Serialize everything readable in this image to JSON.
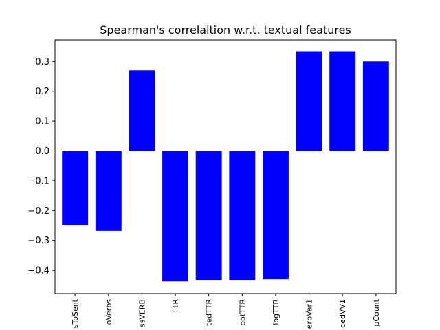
{
  "chart_data": {
    "type": "bar",
    "title": "Spearman's correlaltion w.r.t. textual features",
    "xlabel": "",
    "ylabel": "",
    "categories": [
      "sToSent",
      "oVerbs",
      "ssVERB",
      "TTR",
      "tedTTR",
      "ootTTR",
      "logTTR",
      "erbVar1",
      "cedVV1",
      "pCount"
    ],
    "values": [
      -0.25,
      -0.268,
      0.27,
      -0.437,
      -0.432,
      -0.432,
      -0.43,
      0.334,
      0.334,
      0.3
    ],
    "ylim": [
      -0.478,
      0.372
    ],
    "yticks": [
      -0.4,
      -0.3,
      -0.2,
      -0.1,
      0.0,
      0.1,
      0.2,
      0.3
    ],
    "ytick_labels": [
      "−0.4",
      "−0.3",
      "−0.2",
      "−0.1",
      "0.0",
      "0.1",
      "0.2",
      "0.3"
    ],
    "bar_color": "#0000ff",
    "grid": false,
    "legend": "none"
  }
}
